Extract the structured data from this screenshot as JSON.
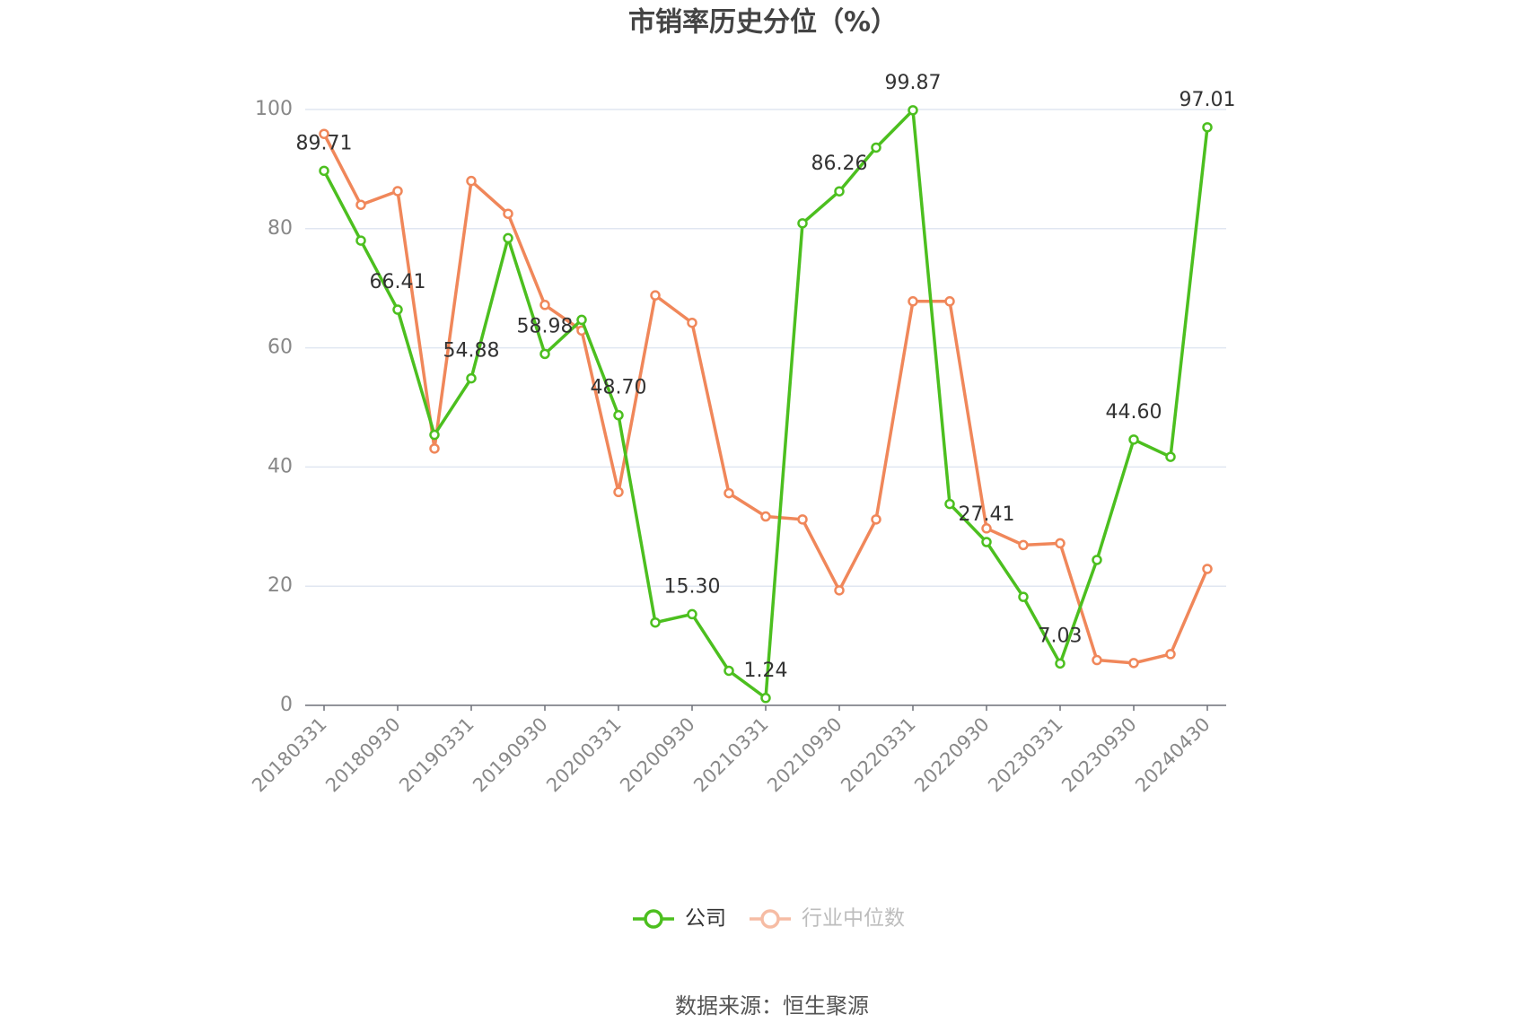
{
  "chart_data": {
    "type": "line",
    "title": "市销率历史分位（%）",
    "source": "数据来源：恒生聚源",
    "categories": [
      "20180331",
      null,
      "20180930",
      null,
      "20190331",
      null,
      "20190930",
      null,
      "20200331",
      null,
      "20200930",
      null,
      "20210331",
      null,
      "20210930",
      null,
      "20220331",
      null,
      "20220930",
      null,
      "20230331",
      null,
      "20230930",
      null,
      "20240430"
    ],
    "series": [
      {
        "name": "公司",
        "color": "#4cbf1f",
        "values": [
          89.71,
          78.0,
          66.41,
          45.4,
          54.88,
          78.4,
          58.98,
          64.7,
          48.7,
          13.9,
          15.3,
          5.8,
          1.24,
          80.9,
          86.26,
          93.6,
          99.87,
          33.8,
          27.41,
          18.2,
          7.03,
          24.4,
          44.6,
          41.7,
          97.01
        ],
        "value_labels": [
          "89.71",
          null,
          "66.41",
          null,
          "54.88",
          null,
          "58.98",
          null,
          "48.70",
          null,
          "15.30",
          null,
          "1.24",
          null,
          "86.26",
          null,
          "99.87",
          null,
          "27.41",
          null,
          "7.03",
          null,
          "44.60",
          null,
          "97.01"
        ]
      },
      {
        "name": "行业中位数",
        "color": "#f0875a",
        "values": [
          95.9,
          84.0,
          86.3,
          43.1,
          88.0,
          82.5,
          67.2,
          62.9,
          35.8,
          68.8,
          64.2,
          35.6,
          31.7,
          31.2,
          19.3,
          31.2,
          67.8,
          67.8,
          29.7,
          26.9,
          27.2,
          7.6,
          7.1,
          8.6,
          22.9
        ]
      }
    ],
    "ylim": [
      0,
      100
    ],
    "yticks": [
      0,
      20,
      40,
      60,
      80,
      100
    ],
    "grid": true,
    "legend": "bottom"
  }
}
